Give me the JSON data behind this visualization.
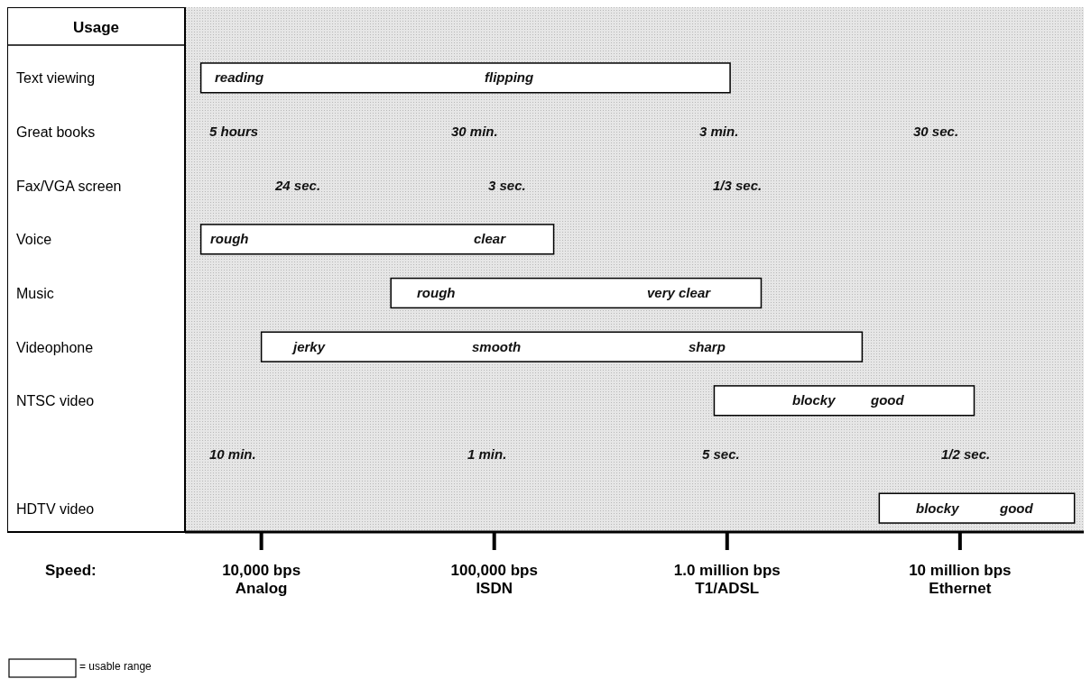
{
  "chart_data": {
    "type": "bar",
    "orientation": "horizontal",
    "log": "x",
    "ylabel": "Usage",
    "xlabel": "Speed:",
    "categories": [
      "Text viewing",
      "Great books",
      "Fax/VGA screen",
      "Voice",
      "Music",
      "Videophone",
      "NTSC video",
      null,
      "HDTV video"
    ],
    "series": [
      {
        "color": "#ffffff",
        "base": [
          5500,
          null,
          null,
          5500,
          36000,
          10000,
          880000,
          null,
          4500000
        ],
        "values": [
          1024500,
          null,
          null,
          174500,
          1364000,
          3790000,
          10620000,
          null,
          26500000
        ]
      }
    ],
    "xlim": [
      4700,
      34000000
    ],
    "xticks": [
      {
        "value": 10000,
        "label": "10,000 bps\nAnalog"
      },
      {
        "value": 100000,
        "label": "100,000 bps\nISDN"
      },
      {
        "value": 1000000,
        "label": "1.0 million bps\nT1/ADSL"
      },
      {
        "value": 10000000,
        "label": "10 million bps\nEthernet"
      }
    ],
    "annotations": [
      "reading",
      "flipping",
      "5 hours",
      "30 min.",
      "3 min.",
      "30 sec.",
      "24 sec.",
      "3 sec.",
      "1/3 sec.",
      "rough",
      "clear",
      "rough",
      "very clear",
      "jerky",
      "smooth",
      "sharp",
      "blocky",
      "good",
      "10 min.",
      "1 min.",
      "5 sec.",
      "1/2 sec.",
      "blocky",
      "good",
      "= usable range"
    ]
  }
}
